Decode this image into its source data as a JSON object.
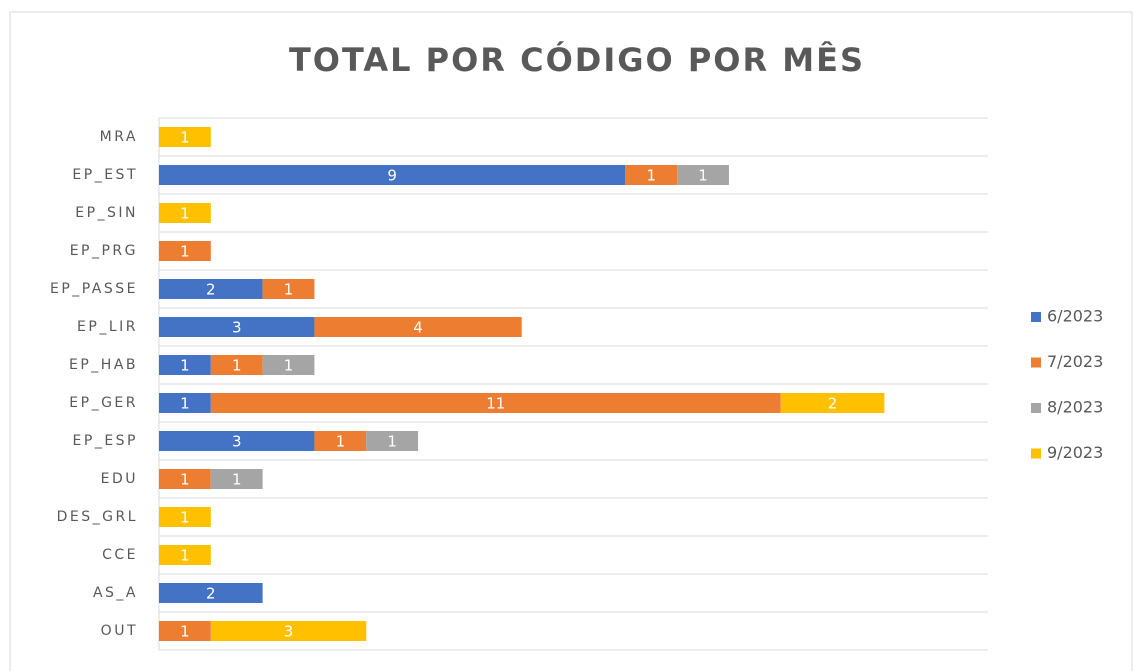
{
  "chart_data": {
    "type": "stacked_barh",
    "title": "TOTAL POR CÓDIGO POR MÊS",
    "categories": [
      "MRA",
      "EP_EST",
      "EP_SIN",
      "EP_PRG",
      "EP_PASSE",
      "EP_LIR",
      "EP_HAB",
      "EP_GER",
      "EP_ESP",
      "EDU",
      "DES_GRL",
      "CCE",
      "AS_A",
      "OUT"
    ],
    "series": [
      {
        "name": "6/2023",
        "color": "#4472c4",
        "values": [
          null,
          9,
          null,
          null,
          2,
          3,
          1,
          1,
          3,
          null,
          null,
          null,
          2,
          null
        ]
      },
      {
        "name": "7/2023",
        "color": "#ed7d31",
        "values": [
          null,
          1,
          null,
          1,
          1,
          4,
          1,
          11,
          1,
          1,
          null,
          null,
          null,
          1
        ]
      },
      {
        "name": "8/2023",
        "color": "#a5a5a5",
        "values": [
          null,
          1,
          null,
          null,
          null,
          null,
          1,
          null,
          1,
          1,
          null,
          null,
          null,
          null
        ]
      },
      {
        "name": "9/2023",
        "color": "#ffc000",
        "values": [
          1,
          null,
          1,
          null,
          null,
          null,
          null,
          2,
          null,
          null,
          1,
          1,
          null,
          3
        ]
      }
    ],
    "xlim": [
      0,
      16
    ],
    "grid": true,
    "legend": "right"
  }
}
